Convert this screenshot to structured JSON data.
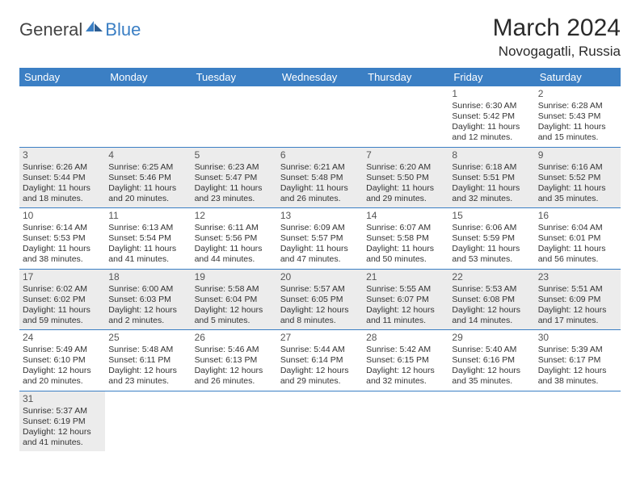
{
  "logo": {
    "text1": "General",
    "text2": "Blue"
  },
  "title": "March 2024",
  "location": "Novogagatli, Russia",
  "colors": {
    "header_bg": "#3b7fc4",
    "header_fg": "#ffffff",
    "shaded_row": "#ececec",
    "border": "#3b7fc4",
    "text": "#333333"
  },
  "weekdays": [
    "Sunday",
    "Monday",
    "Tuesday",
    "Wednesday",
    "Thursday",
    "Friday",
    "Saturday"
  ],
  "weeks": [
    {
      "shaded": false,
      "days": [
        null,
        null,
        null,
        null,
        null,
        {
          "n": "1",
          "sr": "Sunrise: 6:30 AM",
          "ss": "Sunset: 5:42 PM",
          "dl": "Daylight: 11 hours and 12 minutes."
        },
        {
          "n": "2",
          "sr": "Sunrise: 6:28 AM",
          "ss": "Sunset: 5:43 PM",
          "dl": "Daylight: 11 hours and 15 minutes."
        }
      ]
    },
    {
      "shaded": true,
      "days": [
        {
          "n": "3",
          "sr": "Sunrise: 6:26 AM",
          "ss": "Sunset: 5:44 PM",
          "dl": "Daylight: 11 hours and 18 minutes."
        },
        {
          "n": "4",
          "sr": "Sunrise: 6:25 AM",
          "ss": "Sunset: 5:46 PM",
          "dl": "Daylight: 11 hours and 20 minutes."
        },
        {
          "n": "5",
          "sr": "Sunrise: 6:23 AM",
          "ss": "Sunset: 5:47 PM",
          "dl": "Daylight: 11 hours and 23 minutes."
        },
        {
          "n": "6",
          "sr": "Sunrise: 6:21 AM",
          "ss": "Sunset: 5:48 PM",
          "dl": "Daylight: 11 hours and 26 minutes."
        },
        {
          "n": "7",
          "sr": "Sunrise: 6:20 AM",
          "ss": "Sunset: 5:50 PM",
          "dl": "Daylight: 11 hours and 29 minutes."
        },
        {
          "n": "8",
          "sr": "Sunrise: 6:18 AM",
          "ss": "Sunset: 5:51 PM",
          "dl": "Daylight: 11 hours and 32 minutes."
        },
        {
          "n": "9",
          "sr": "Sunrise: 6:16 AM",
          "ss": "Sunset: 5:52 PM",
          "dl": "Daylight: 11 hours and 35 minutes."
        }
      ]
    },
    {
      "shaded": false,
      "days": [
        {
          "n": "10",
          "sr": "Sunrise: 6:14 AM",
          "ss": "Sunset: 5:53 PM",
          "dl": "Daylight: 11 hours and 38 minutes."
        },
        {
          "n": "11",
          "sr": "Sunrise: 6:13 AM",
          "ss": "Sunset: 5:54 PM",
          "dl": "Daylight: 11 hours and 41 minutes."
        },
        {
          "n": "12",
          "sr": "Sunrise: 6:11 AM",
          "ss": "Sunset: 5:56 PM",
          "dl": "Daylight: 11 hours and 44 minutes."
        },
        {
          "n": "13",
          "sr": "Sunrise: 6:09 AM",
          "ss": "Sunset: 5:57 PM",
          "dl": "Daylight: 11 hours and 47 minutes."
        },
        {
          "n": "14",
          "sr": "Sunrise: 6:07 AM",
          "ss": "Sunset: 5:58 PM",
          "dl": "Daylight: 11 hours and 50 minutes."
        },
        {
          "n": "15",
          "sr": "Sunrise: 6:06 AM",
          "ss": "Sunset: 5:59 PM",
          "dl": "Daylight: 11 hours and 53 minutes."
        },
        {
          "n": "16",
          "sr": "Sunrise: 6:04 AM",
          "ss": "Sunset: 6:01 PM",
          "dl": "Daylight: 11 hours and 56 minutes."
        }
      ]
    },
    {
      "shaded": true,
      "days": [
        {
          "n": "17",
          "sr": "Sunrise: 6:02 AM",
          "ss": "Sunset: 6:02 PM",
          "dl": "Daylight: 11 hours and 59 minutes."
        },
        {
          "n": "18",
          "sr": "Sunrise: 6:00 AM",
          "ss": "Sunset: 6:03 PM",
          "dl": "Daylight: 12 hours and 2 minutes."
        },
        {
          "n": "19",
          "sr": "Sunrise: 5:58 AM",
          "ss": "Sunset: 6:04 PM",
          "dl": "Daylight: 12 hours and 5 minutes."
        },
        {
          "n": "20",
          "sr": "Sunrise: 5:57 AM",
          "ss": "Sunset: 6:05 PM",
          "dl": "Daylight: 12 hours and 8 minutes."
        },
        {
          "n": "21",
          "sr": "Sunrise: 5:55 AM",
          "ss": "Sunset: 6:07 PM",
          "dl": "Daylight: 12 hours and 11 minutes."
        },
        {
          "n": "22",
          "sr": "Sunrise: 5:53 AM",
          "ss": "Sunset: 6:08 PM",
          "dl": "Daylight: 12 hours and 14 minutes."
        },
        {
          "n": "23",
          "sr": "Sunrise: 5:51 AM",
          "ss": "Sunset: 6:09 PM",
          "dl": "Daylight: 12 hours and 17 minutes."
        }
      ]
    },
    {
      "shaded": false,
      "days": [
        {
          "n": "24",
          "sr": "Sunrise: 5:49 AM",
          "ss": "Sunset: 6:10 PM",
          "dl": "Daylight: 12 hours and 20 minutes."
        },
        {
          "n": "25",
          "sr": "Sunrise: 5:48 AM",
          "ss": "Sunset: 6:11 PM",
          "dl": "Daylight: 12 hours and 23 minutes."
        },
        {
          "n": "26",
          "sr": "Sunrise: 5:46 AM",
          "ss": "Sunset: 6:13 PM",
          "dl": "Daylight: 12 hours and 26 minutes."
        },
        {
          "n": "27",
          "sr": "Sunrise: 5:44 AM",
          "ss": "Sunset: 6:14 PM",
          "dl": "Daylight: 12 hours and 29 minutes."
        },
        {
          "n": "28",
          "sr": "Sunrise: 5:42 AM",
          "ss": "Sunset: 6:15 PM",
          "dl": "Daylight: 12 hours and 32 minutes."
        },
        {
          "n": "29",
          "sr": "Sunrise: 5:40 AM",
          "ss": "Sunset: 6:16 PM",
          "dl": "Daylight: 12 hours and 35 minutes."
        },
        {
          "n": "30",
          "sr": "Sunrise: 5:39 AM",
          "ss": "Sunset: 6:17 PM",
          "dl": "Daylight: 12 hours and 38 minutes."
        }
      ]
    },
    {
      "shaded": true,
      "days": [
        {
          "n": "31",
          "sr": "Sunrise: 5:37 AM",
          "ss": "Sunset: 6:19 PM",
          "dl": "Daylight: 12 hours and 41 minutes."
        },
        null,
        null,
        null,
        null,
        null,
        null
      ]
    }
  ]
}
